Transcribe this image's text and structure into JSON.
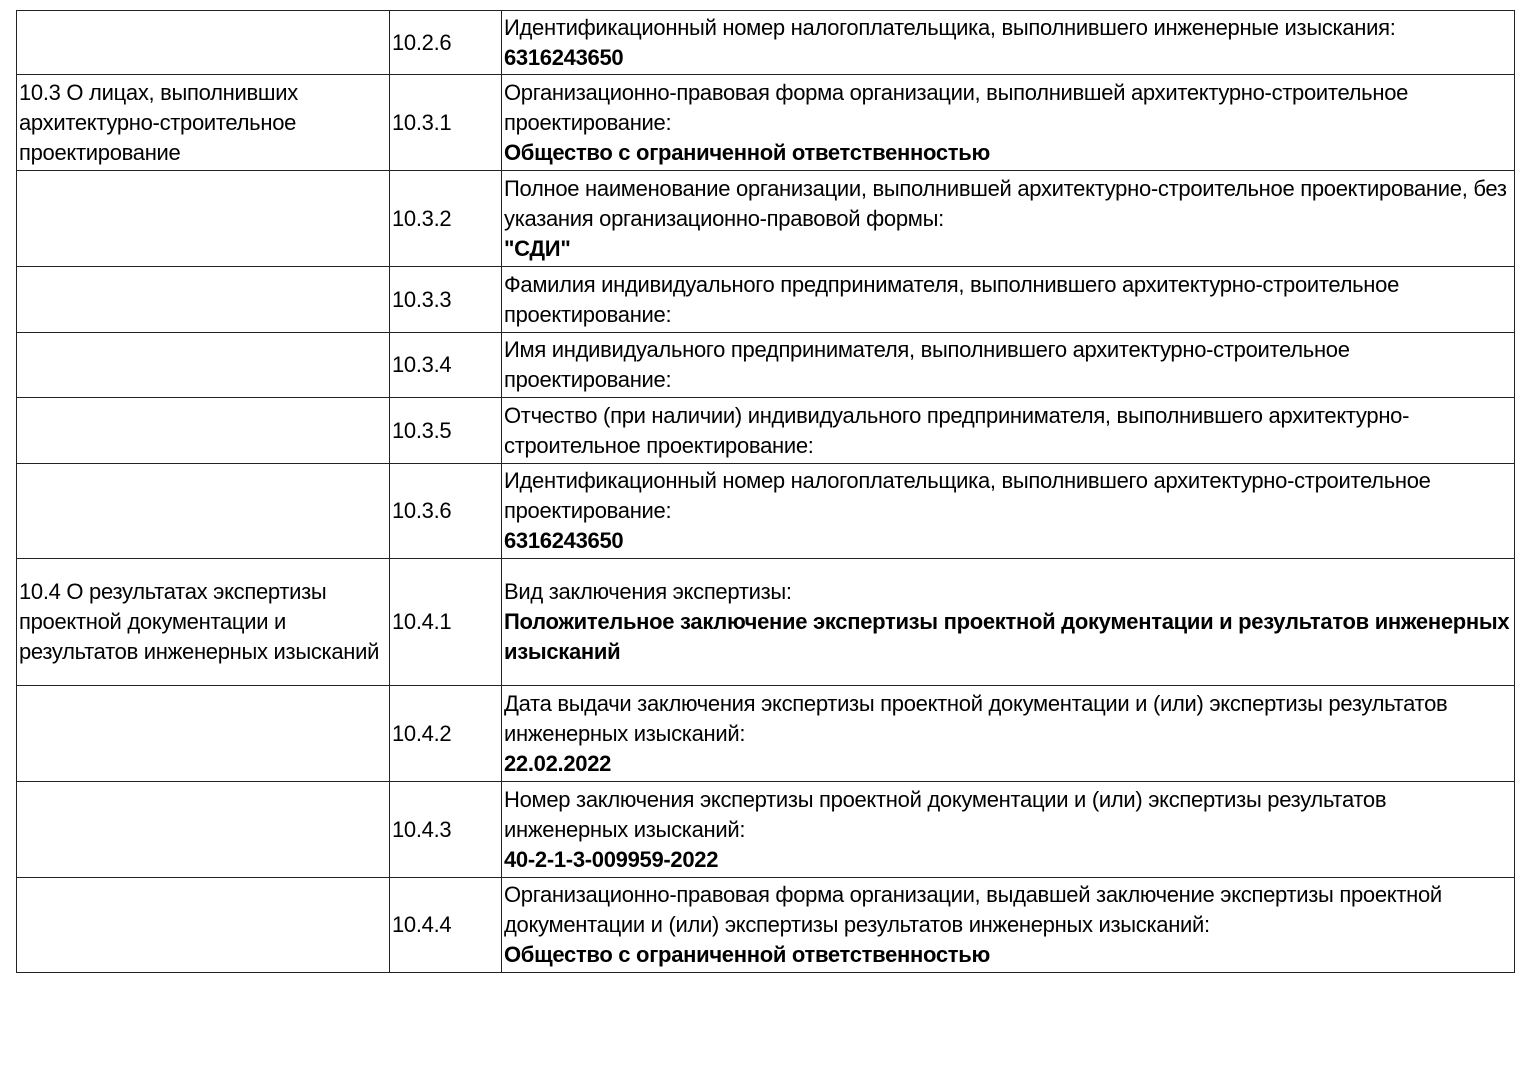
{
  "rows": [
    {
      "section": "",
      "code": "10.2.6",
      "label": "Идентификационный номер налогоплательщика, выполнившего инженерные изыскания:",
      "value": "6316243650"
    },
    {
      "section": "10.3 О лицах, выполнивших архитектурно-строительное проектирование",
      "code": "10.3.1",
      "label": "Организационно-правовая форма организации, выполнившей архитектурно-строительное проектирование:",
      "value": "Общество с ограниченной ответственностью"
    },
    {
      "section": "",
      "code": "10.3.2",
      "label": "Полное наименование организации, выполнившей архитектурно-строительное проектирование, без указания организационно-правовой формы:",
      "value": "\"СДИ\""
    },
    {
      "section": "",
      "code": "10.3.3",
      "label": "Фамилия индивидуального предпринимателя, выполнившего архитектурно-строительное проектирование:",
      "value": ""
    },
    {
      "section": "",
      "code": "10.3.4",
      "label": "Имя индивидуального предпринимателя, выполнившего архитектурно-строительное проектирование:",
      "value": ""
    },
    {
      "section": "",
      "code": "10.3.5",
      "label": "Отчество (при наличии) индивидуального предпринимателя, выполнившего архитектурно-строительное проектирование:",
      "value": ""
    },
    {
      "section": "",
      "code": "10.3.6",
      "label": "Идентификационный номер налогоплательщика, выполнившего архитектурно-строительное проектирование:",
      "value": "6316243650"
    },
    {
      "section": "10.4 О результатах экспертизы проектной документации и результатов инженерных изысканий",
      "code": "10.4.1",
      "label": "Вид заключения экспертизы:",
      "value": "Положительное заключение экспертизы проектной документации и результатов инженерных изысканий"
    },
    {
      "section": "",
      "code": "10.4.2",
      "label": "Дата выдачи заключения экспертизы проектной документации и (или) экспертизы результатов инженерных изысканий:",
      "value": "22.02.2022"
    },
    {
      "section": "",
      "code": "10.4.3",
      "label": "Номер заключения экспертизы проектной документации и (или) экспертизы результатов инженерных изысканий:",
      "value": "40-2-1-3-009959-2022"
    },
    {
      "section": "",
      "code": "10.4.4",
      "label": "Организационно-правовая форма организации, выдавшей заключение экспертизы проектной документации и (или) экспертизы результатов инженерных изысканий:",
      "value": "Общество с ограниченной ответственностью"
    }
  ]
}
